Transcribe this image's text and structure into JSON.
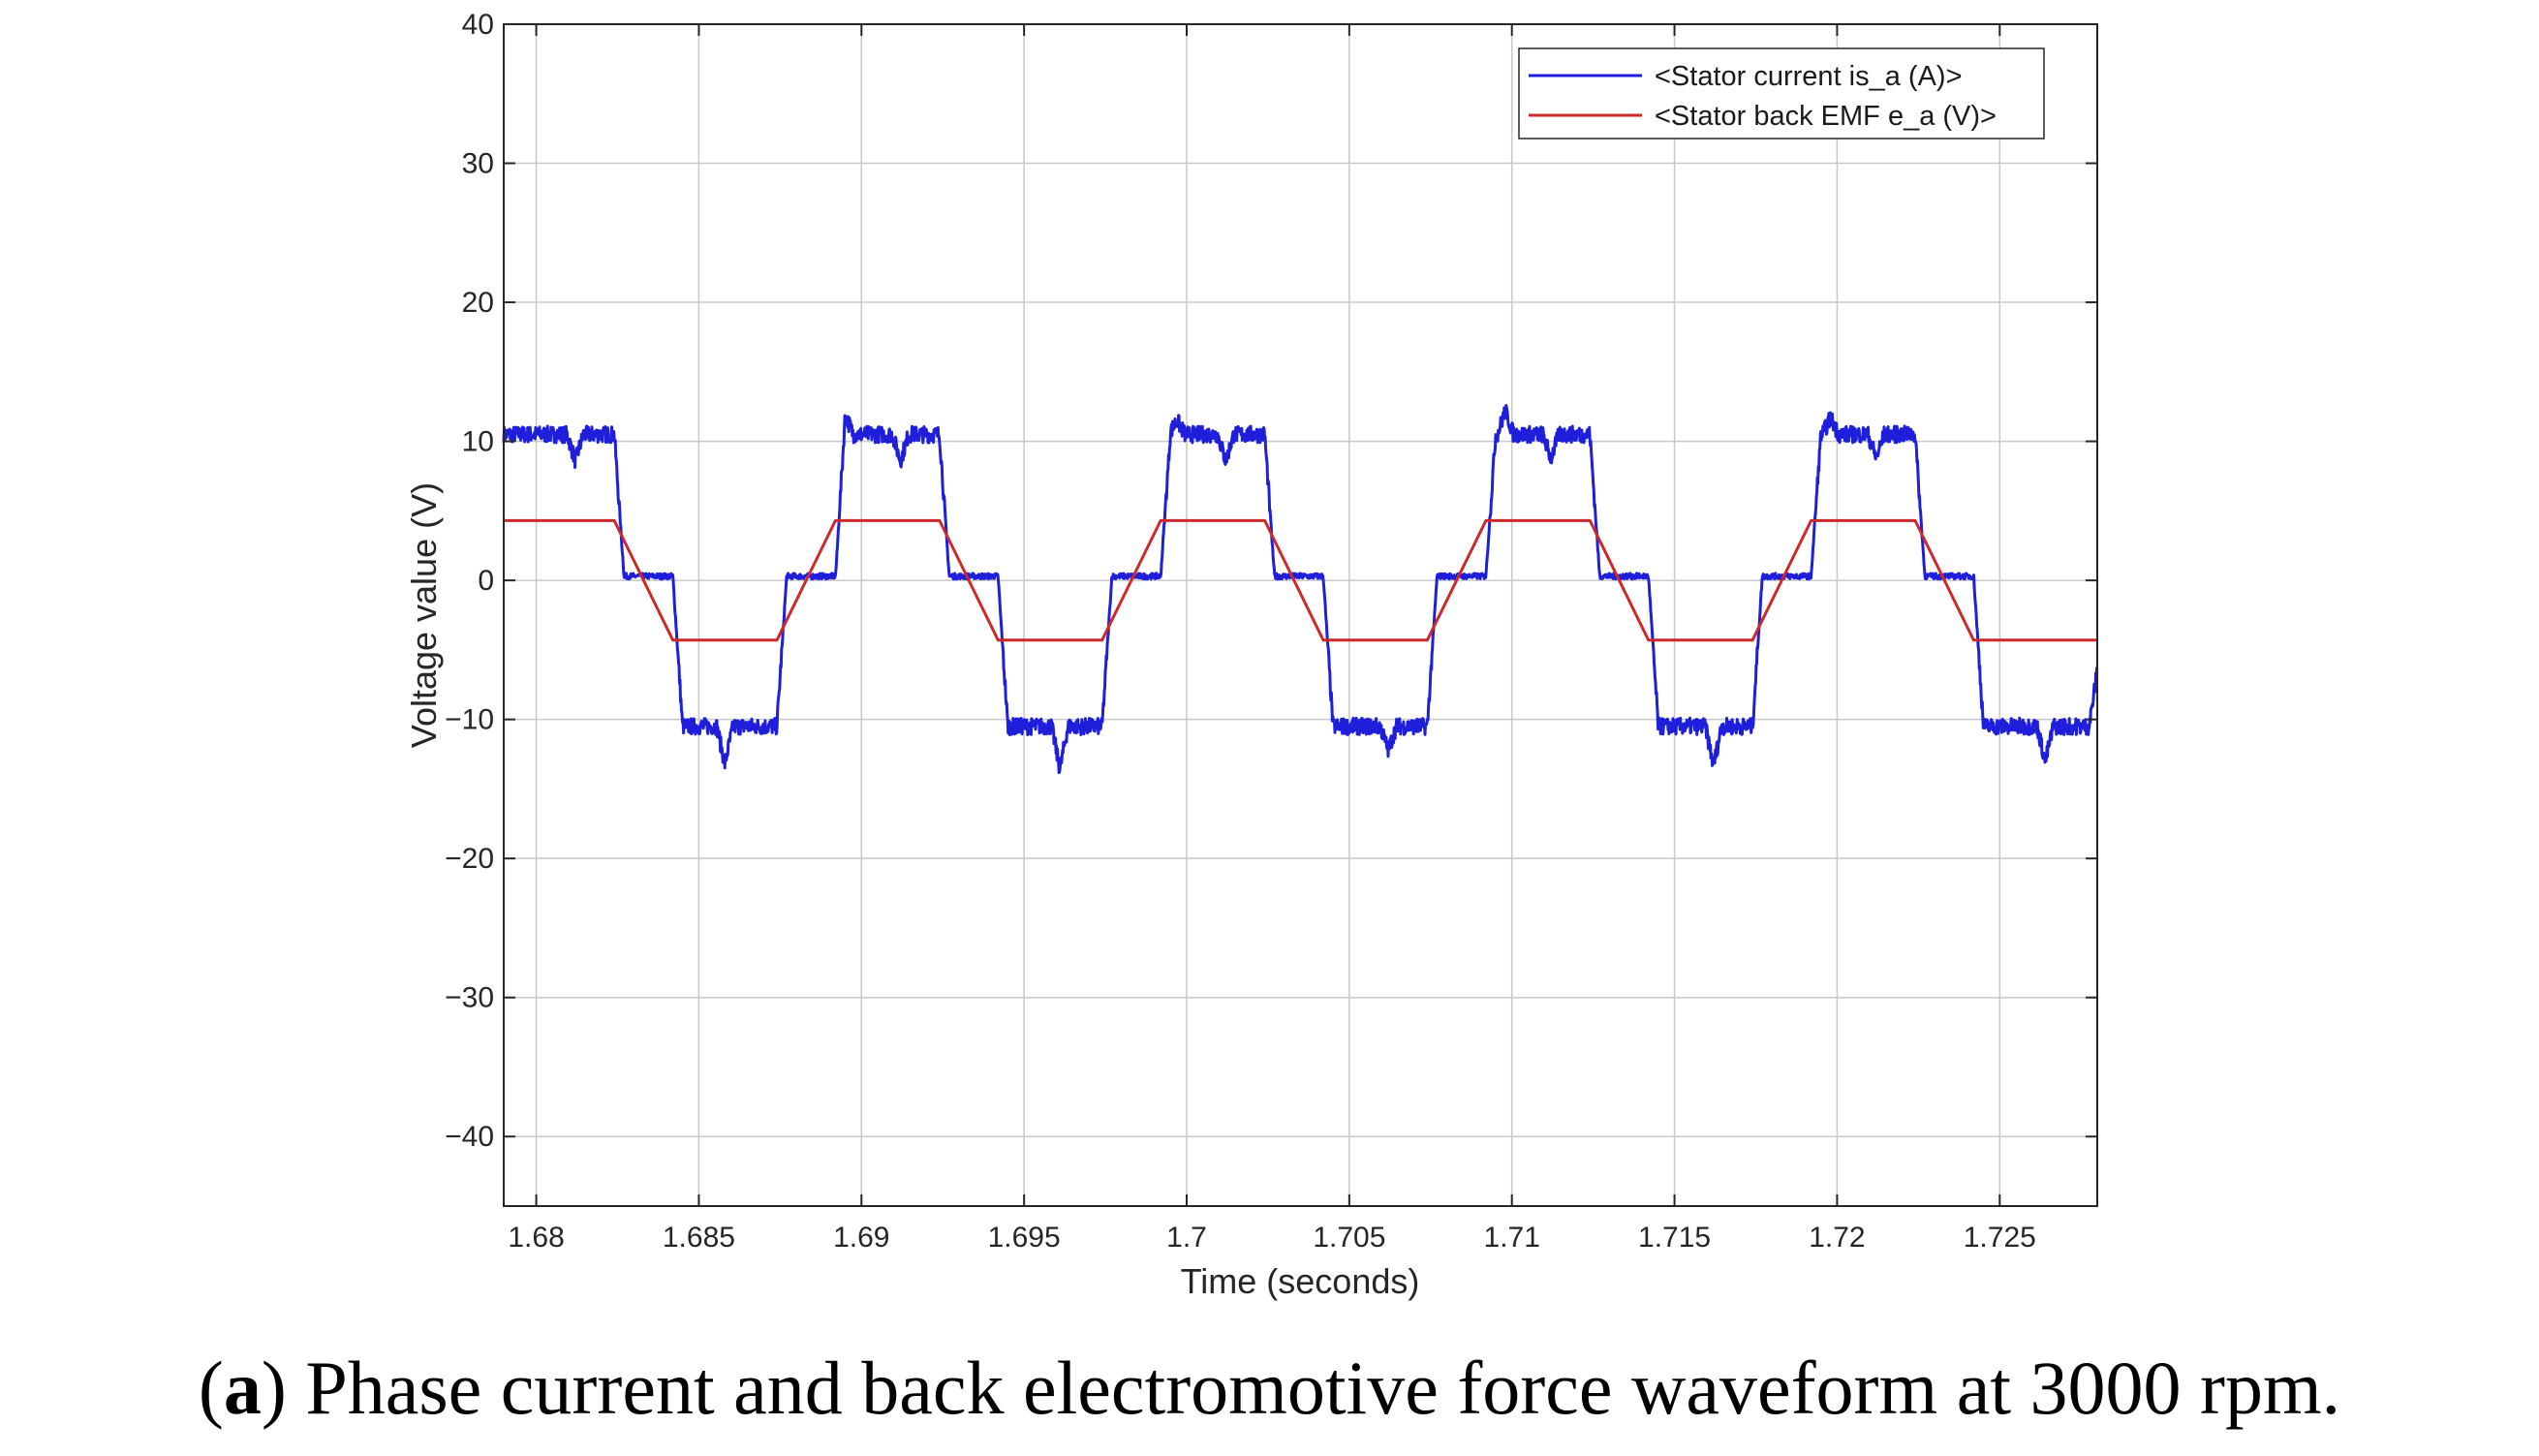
{
  "chart_data": {
    "type": "line",
    "xlabel": "Time (seconds)",
    "ylabel": "Voltage value (V)",
    "xlim": [
      1.679,
      1.728
    ],
    "ylim": [
      -45,
      40
    ],
    "x_ticks": [
      1.68,
      1.685,
      1.69,
      1.695,
      1.7,
      1.705,
      1.71,
      1.715,
      1.72,
      1.725
    ],
    "x_tick_labels": [
      "1.68",
      "1.685",
      "1.69",
      "1.695",
      "1.7",
      "1.705",
      "1.71",
      "1.715",
      "1.72",
      "1.725"
    ],
    "y_ticks": [
      40,
      30,
      20,
      10,
      0,
      -10,
      -20,
      -30,
      -40
    ],
    "y_tick_labels": [
      "40",
      "30",
      "20",
      "10",
      "0",
      "−10",
      "−20",
      "−30",
      "−40"
    ],
    "grid": true,
    "legend_position": "top-right",
    "series": [
      {
        "name": "<Stator current is_a (A)>",
        "color": "#1f1fdb",
        "style": "noisy six-step trapezoid",
        "x": [
          1.679,
          1.6824,
          1.6827,
          1.6842,
          1.6845,
          1.6874,
          1.6877,
          1.6892,
          1.6895,
          1.6924,
          1.6927,
          1.6942,
          1.6945,
          1.6974,
          1.6977,
          1.6992,
          1.6995,
          1.7024,
          1.7027,
          1.7042,
          1.7045,
          1.7074,
          1.7077,
          1.7092,
          1.7095,
          1.7124,
          1.7127,
          1.7142,
          1.7145,
          1.7174,
          1.7177,
          1.7192,
          1.7195,
          1.7224,
          1.7227,
          1.7242,
          1.7245,
          1.728
        ],
        "values": [
          10.5,
          10.5,
          0.3,
          0.3,
          -10.5,
          -10.5,
          0.3,
          0.3,
          10.5,
          10.5,
          0.3,
          0.3,
          -10.5,
          -10.5,
          0.3,
          0.3,
          10.5,
          10.5,
          0.3,
          0.3,
          -10.5,
          -10.5,
          0.3,
          0.3,
          10.5,
          10.5,
          0.3,
          0.3,
          -10.5,
          -10.5,
          0.3,
          0.3,
          10.5,
          10.5,
          0.3,
          0.3,
          -10.5,
          -10.5
        ],
        "ripple": 0.6,
        "spikes": [
          {
            "x": 1.6812,
            "y": 8.6
          },
          {
            "x": 1.6858,
            "y": -13.2
          },
          {
            "x": 1.6895,
            "y": 11.9
          },
          {
            "x": 1.6912,
            "y": 8.6
          },
          {
            "x": 1.6961,
            "y": -13.6
          },
          {
            "x": 1.6997,
            "y": 11.5
          },
          {
            "x": 1.7012,
            "y": 8.6
          },
          {
            "x": 1.7062,
            "y": -12.2
          },
          {
            "x": 1.7098,
            "y": 12.2
          },
          {
            "x": 1.7112,
            "y": 8.8
          },
          {
            "x": 1.7162,
            "y": -13.3
          },
          {
            "x": 1.7198,
            "y": 11.7
          },
          {
            "x": 1.7212,
            "y": 8.8
          },
          {
            "x": 1.7264,
            "y": -13.0
          },
          {
            "x": 1.728,
            "y": -6.5
          }
        ]
      },
      {
        "name": "<Stator back EMF e_a (V)>",
        "color": "#cc2a2a",
        "style": "trapezoid",
        "x": [
          1.679,
          1.6824,
          1.6842,
          1.6874,
          1.6892,
          1.6924,
          1.6942,
          1.6974,
          1.6992,
          1.7024,
          1.7042,
          1.7074,
          1.7092,
          1.7124,
          1.7142,
          1.7174,
          1.7192,
          1.7224,
          1.7242,
          1.728
        ],
        "values": [
          4.3,
          4.3,
          -4.3,
          -4.3,
          4.3,
          4.3,
          -4.3,
          -4.3,
          4.3,
          4.3,
          -4.3,
          -4.3,
          4.3,
          4.3,
          -4.3,
          -4.3,
          4.3,
          4.3,
          -4.3,
          -4.3
        ]
      }
    ]
  },
  "caption": {
    "tag": "a",
    "open_paren": "(",
    "close_paren": ")",
    "text": " Phase current and back electromotive force waveform at 3000 rpm."
  }
}
